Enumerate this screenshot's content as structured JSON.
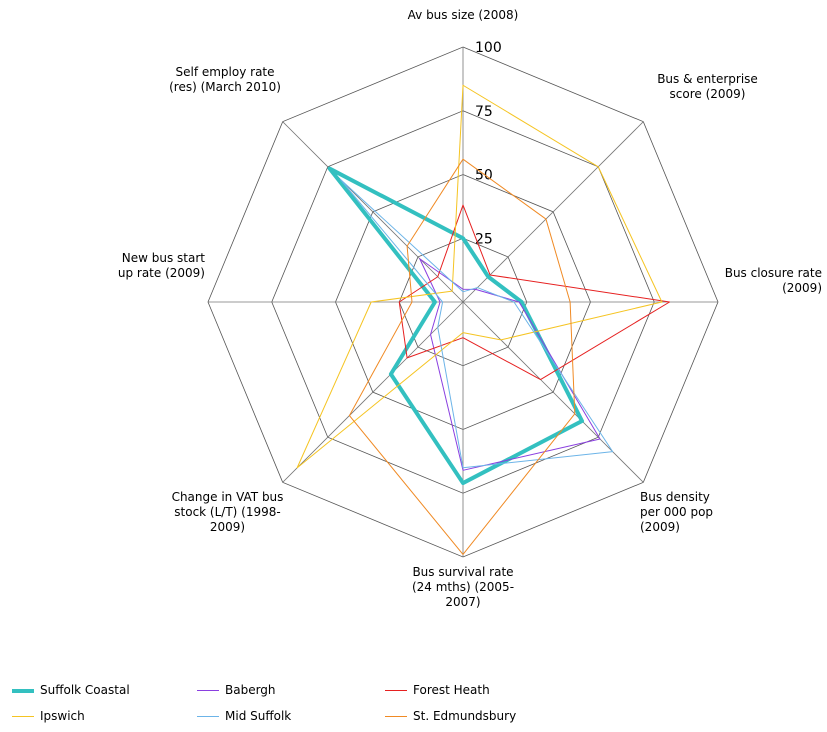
{
  "chart_data": {
    "type": "radar",
    "categories": [
      "Av bus size (2008)",
      "Bus & enterprise score (2009)",
      "Bus closure rate (2009)",
      "Bus density per 000 pop (2009)",
      "Bus survival rate (24 mths) (2005-2007)",
      "Change in VAT bus stock (L/T) (1998-2009)",
      "New bus start up rate (2009)",
      "Self employ rate (res) (March 2010)"
    ],
    "rlim": [
      0,
      100
    ],
    "rticks": [
      25,
      50,
      75,
      100
    ],
    "grid": true,
    "series": [
      {
        "name": "Suffolk Coastal",
        "color": "#33c0c0",
        "width": 4,
        "values": [
          25,
          14,
          23,
          66,
          71,
          40,
          11,
          74
        ]
      },
      {
        "name": "Babergh",
        "color": "#8a3fe0",
        "width": 1,
        "values": [
          5,
          7,
          22,
          76,
          66,
          18,
          9,
          24
        ]
      },
      {
        "name": "Forest Heath",
        "color": "#e62020",
        "width": 1,
        "values": [
          38,
          15,
          81,
          43,
          14,
          31,
          25,
          14
        ]
      },
      {
        "name": "Ipswich",
        "color": "#f5c422",
        "width": 1,
        "values": [
          85,
          75,
          78,
          21,
          12,
          92,
          36,
          6
        ]
      },
      {
        "name": "Mid Suffolk",
        "color": "#6cb4e8",
        "width": 1,
        "values": [
          4,
          8,
          20,
          83,
          65,
          14,
          8,
          68
        ]
      },
      {
        "name": "St. Edmundsbury",
        "color": "#f08a24",
        "width": 1,
        "values": [
          56,
          46,
          42,
          62,
          99,
          63,
          20,
          31
        ]
      }
    ]
  }
}
